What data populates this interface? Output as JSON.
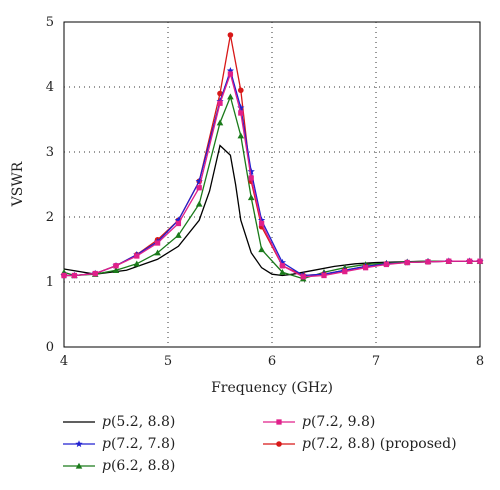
{
  "chart_data": {
    "type": "line",
    "title": "",
    "xlabel": "Frequency (GHz)",
    "ylabel": "VSWR",
    "xlim": [
      4,
      8
    ],
    "ylim": [
      0,
      5
    ],
    "xticks": [
      4,
      5,
      6,
      7,
      8
    ],
    "yticks": [
      0,
      1,
      2,
      3,
      4,
      5
    ],
    "grid": true,
    "legend_position": "bottom",
    "series": [
      {
        "name": "p(5.2, 8.8)",
        "label_italic": "p",
        "label_rest": "(5.2, 8.8)",
        "color": "#000000",
        "marker": "none",
        "x": [
          4.0,
          4.3,
          4.6,
          4.9,
          5.1,
          5.3,
          5.4,
          5.5,
          5.6,
          5.65,
          5.7,
          5.8,
          5.9,
          6.0,
          6.1,
          6.2,
          6.4,
          6.6,
          6.8,
          7.0,
          7.5,
          8.0
        ],
        "y": [
          1.2,
          1.12,
          1.18,
          1.35,
          1.55,
          1.95,
          2.4,
          3.1,
          2.95,
          2.5,
          1.95,
          1.45,
          1.22,
          1.12,
          1.1,
          1.12,
          1.18,
          1.24,
          1.28,
          1.3,
          1.32,
          1.32
        ]
      },
      {
        "name": "p(6.2, 8.8)",
        "label_italic": "p",
        "label_rest": "(6.2, 8.8)",
        "color": "#1a7a1a",
        "marker": "triangle",
        "x": [
          4.0,
          4.1,
          4.3,
          4.5,
          4.7,
          4.9,
          5.1,
          5.3,
          5.5,
          5.6,
          5.7,
          5.8,
          5.9,
          6.1,
          6.3,
          6.5,
          6.7,
          6.9,
          7.1,
          7.3,
          7.5,
          7.7,
          7.9,
          8.0
        ],
        "y": [
          1.15,
          1.1,
          1.12,
          1.18,
          1.28,
          1.45,
          1.72,
          2.2,
          3.45,
          3.85,
          3.25,
          2.3,
          1.5,
          1.15,
          1.05,
          1.15,
          1.22,
          1.27,
          1.29,
          1.31,
          1.32,
          1.32,
          1.32,
          1.32
        ]
      },
      {
        "name": "p(7.2, 8.8) (proposed)",
        "label_italic": "p",
        "label_rest": "(7.2, 8.8) (proposed)",
        "color": "#d81818",
        "marker": "circle",
        "x": [
          4.0,
          4.1,
          4.3,
          4.5,
          4.7,
          4.9,
          5.1,
          5.3,
          5.5,
          5.6,
          5.7,
          5.8,
          5.9,
          6.1,
          6.3,
          6.5,
          6.7,
          6.9,
          7.1,
          7.3,
          7.5,
          7.7,
          7.9,
          8.0
        ],
        "y": [
          1.1,
          1.1,
          1.13,
          1.25,
          1.42,
          1.65,
          1.95,
          2.55,
          3.9,
          4.8,
          3.95,
          2.55,
          1.85,
          1.25,
          1.1,
          1.12,
          1.18,
          1.24,
          1.28,
          1.3,
          1.31,
          1.32,
          1.32,
          1.32
        ]
      },
      {
        "name": "p(7.2, 7.8)",
        "label_italic": "p",
        "label_rest": "(7.2, 7.8)",
        "color": "#2020d0",
        "marker": "star",
        "x": [
          4.0,
          4.1,
          4.3,
          4.5,
          4.7,
          4.9,
          5.1,
          5.3,
          5.5,
          5.6,
          5.7,
          5.8,
          5.9,
          6.1,
          6.3,
          6.5,
          6.7,
          6.9,
          7.1,
          7.3,
          7.5,
          7.7,
          7.9,
          8.0
        ],
        "y": [
          1.1,
          1.1,
          1.13,
          1.25,
          1.42,
          1.62,
          1.95,
          2.55,
          3.78,
          4.25,
          3.68,
          2.7,
          1.95,
          1.3,
          1.1,
          1.12,
          1.18,
          1.24,
          1.28,
          1.3,
          1.31,
          1.32,
          1.32,
          1.32
        ]
      },
      {
        "name": "p(7.2, 9.8)",
        "label_italic": "p",
        "label_rest": "(7.2, 9.8)",
        "color": "#e0208a",
        "marker": "square",
        "x": [
          4.0,
          4.1,
          4.3,
          4.5,
          4.7,
          4.9,
          5.1,
          5.3,
          5.5,
          5.6,
          5.7,
          5.8,
          5.9,
          6.1,
          6.3,
          6.5,
          6.7,
          6.9,
          7.1,
          7.3,
          7.5,
          7.7,
          7.9,
          8.0
        ],
        "y": [
          1.1,
          1.1,
          1.13,
          1.25,
          1.4,
          1.6,
          1.9,
          2.45,
          3.75,
          4.2,
          3.6,
          2.6,
          1.9,
          1.25,
          1.08,
          1.1,
          1.16,
          1.22,
          1.27,
          1.3,
          1.31,
          1.32,
          1.32,
          1.32
        ]
      }
    ],
    "legend_order": [
      0,
      3,
      1,
      4,
      2
    ]
  }
}
